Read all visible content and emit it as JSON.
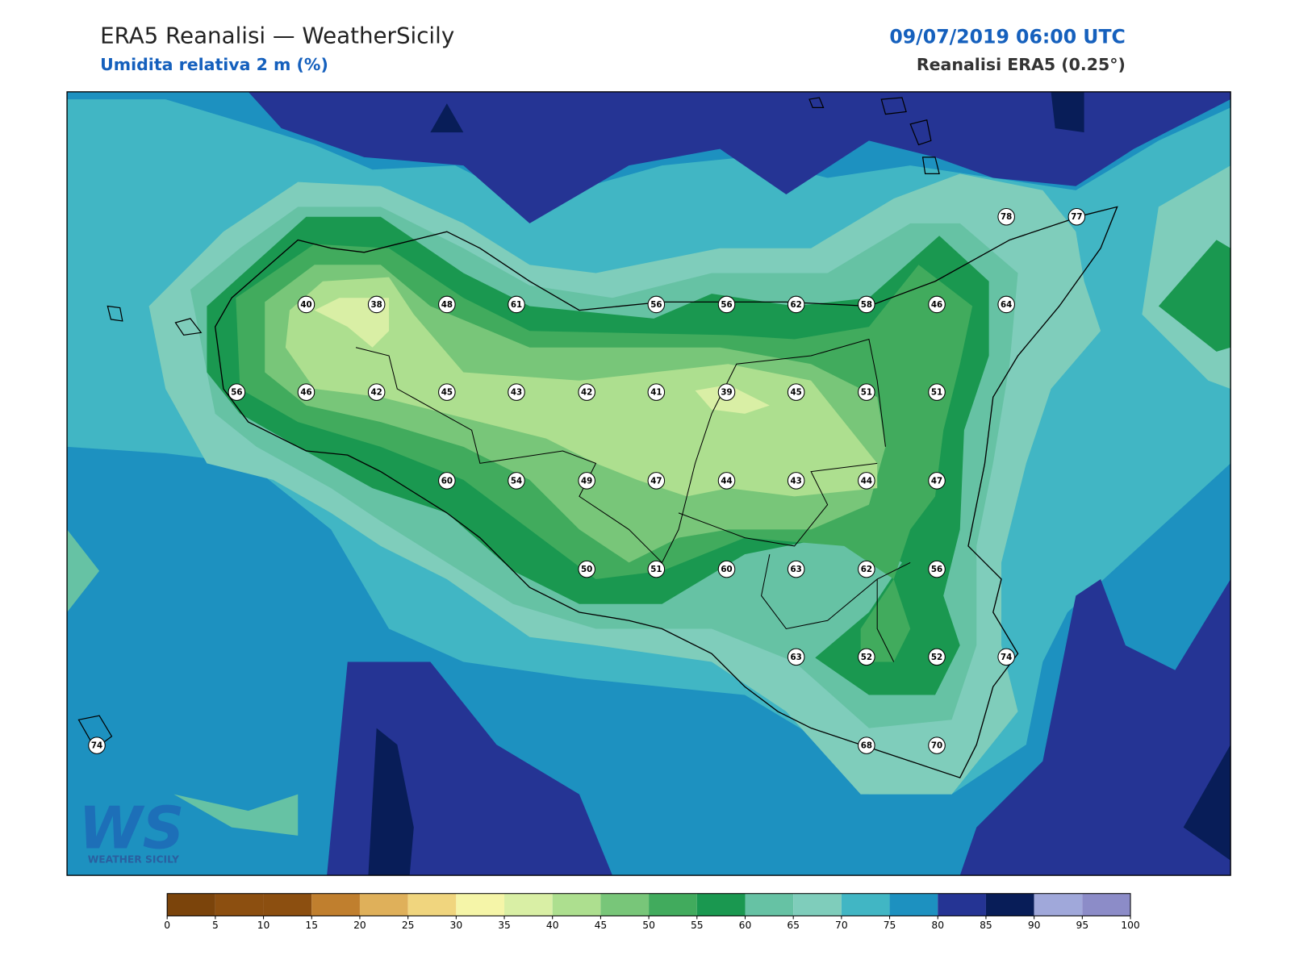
{
  "header": {
    "title": "ERA5 Reanalisi — WeatherSicily",
    "subtitle": "Umidita relativa 2 m (%)",
    "datetime": "09/07/2019 06:00 UTC",
    "source": "Reanalisi ERA5 (0.25°)"
  },
  "stations": [
    40,
    38,
    48,
    61,
    56,
    56,
    62,
    58,
    46,
    64,
    78,
    77,
    56,
    46,
    42,
    45,
    43,
    42,
    41,
    39,
    45,
    51,
    51,
    60,
    54,
    49,
    47,
    44,
    43,
    44,
    47,
    50,
    51,
    60,
    63,
    62,
    56,
    63,
    52,
    52,
    74,
    74,
    68,
    70
  ],
  "colorbar": {
    "ticks": [
      0,
      5,
      10,
      15,
      20,
      25,
      30,
      35,
      40,
      45,
      50,
      55,
      60,
      65,
      70,
      75,
      80,
      85,
      90,
      95,
      100
    ],
    "colors": [
      "#7b440b",
      "#8c4f10",
      "#8c4f10",
      "#c07f2e",
      "#dfb05a",
      "#f0d57e",
      "#f5f5a8",
      "#d9efa5",
      "#addf8f",
      "#78c679",
      "#41ab5d",
      "#1a9850",
      "#66c2a4",
      "#7fcdbb",
      "#41b6c4",
      "#1d91c0",
      "#253494",
      "#081d58",
      "#a0a8da",
      "#8c8cc8"
    ]
  },
  "logo": {
    "mark": "WS",
    "text": "WEATHER SICILY"
  }
}
